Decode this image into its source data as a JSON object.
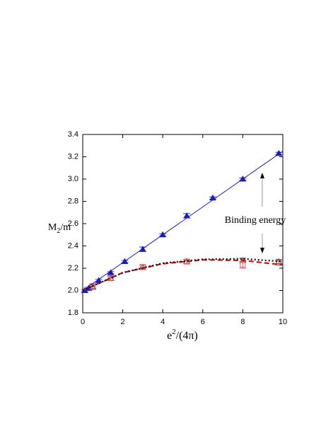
{
  "chart_data": {
    "type": "scatter",
    "xlabel": {
      "base": "e",
      "sup": "2",
      "rest": "/(4π)"
    },
    "ylabel": {
      "base": "M",
      "sub": "2",
      "rest": "/m"
    },
    "annotation": "Binding energy",
    "xlim": [
      0,
      10
    ],
    "xticks": [
      0,
      2,
      4,
      6,
      8,
      10
    ],
    "ylim": [
      1.8,
      3.4
    ],
    "yticks": [
      1.8,
      {
        "value": 2,
        "label": "2.0"
      },
      2.2,
      2.4,
      2.6,
      2.8,
      {
        "value": 3,
        "label": "3.0"
      },
      3.2,
      3.4
    ],
    "series": [
      {
        "mode": "markers",
        "marker": "triangle-filled",
        "color": "#1a1acc",
        "x": [
          0.1,
          0.3,
          0.8,
          1.4,
          2.1,
          3.0,
          4.0,
          5.2,
          6.5,
          8.0,
          9.8
        ],
        "values": [
          2.0,
          2.02,
          2.09,
          2.16,
          2.26,
          2.37,
          2.5,
          2.67,
          2.83,
          3.0,
          3.23
        ],
        "errors": [
          0.01,
          0.01,
          0.01,
          0.01,
          0.01,
          0.02,
          0.01,
          0.02,
          0.01,
          0.01,
          0.01
        ]
      },
      {
        "mode": "markers",
        "marker": "triangle-open",
        "color": "#555555",
        "x": [
          0.5,
          1.4,
          3.0,
          5.2,
          8.0,
          9.8
        ],
        "values": [
          2.03,
          2.11,
          2.21,
          2.26,
          2.27,
          2.26
        ],
        "errors": [
          0.02,
          0.02,
          0.02,
          0.02,
          0.02,
          0.02
        ]
      },
      {
        "mode": "markers",
        "marker": "square-open",
        "color": "#e05050",
        "x": [
          0.5,
          1.4,
          3.0,
          5.2,
          8.0,
          9.8
        ],
        "values": [
          2.04,
          2.11,
          2.21,
          2.26,
          2.23,
          2.25
        ],
        "errors": [
          0.02,
          0.02,
          0.02,
          0.02,
          0.03,
          0.02
        ]
      },
      {
        "mode": "line",
        "style": "solid",
        "color": "#1a1acc",
        "x": [
          0,
          10
        ],
        "values": [
          2.0,
          3.25
        ]
      },
      {
        "mode": "line",
        "style": "dashed",
        "color": "#d01010",
        "x": [
          0,
          2,
          4,
          6,
          8,
          10
        ],
        "values": [
          2.0,
          2.16,
          2.24,
          2.275,
          2.27,
          2.23
        ]
      },
      {
        "mode": "line",
        "style": "dotted",
        "color": "#111111",
        "x": [
          0,
          2,
          4,
          6,
          8,
          10
        ],
        "values": [
          2.0,
          2.16,
          2.245,
          2.28,
          2.285,
          2.26
        ]
      }
    ]
  }
}
